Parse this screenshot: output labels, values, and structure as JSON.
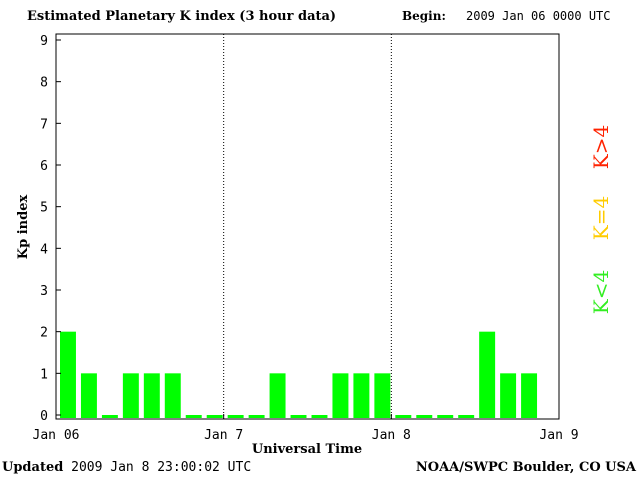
{
  "header": {
    "title": "Estimated Planetary K index (3 hour data)",
    "begin_label": "Begin:",
    "begin_value": "2009 Jan 06 0000 UTC"
  },
  "footer": {
    "updated_label": "Updated",
    "updated_value": "2009 Jan  8 23:00:02 UTC",
    "source": "NOAA/SWPC Boulder, CO USA"
  },
  "chart_data": {
    "type": "bar",
    "title": "Estimated Planetary K index (3 hour data)",
    "xlabel": "Universal Time",
    "ylabel": "Kp index",
    "ylim": [
      0,
      9
    ],
    "yticks": [
      "0",
      "1",
      "2",
      "3",
      "4",
      "5",
      "6",
      "7",
      "8",
      "9"
    ],
    "xticks": [
      "Jan 06",
      "Jan 7",
      "Jan 8",
      "Jan 9"
    ],
    "categories": [
      "Jan 06 00",
      "Jan 06 03",
      "Jan 06 06",
      "Jan 06 09",
      "Jan 06 12",
      "Jan 06 15",
      "Jan 06 18",
      "Jan 06 21",
      "Jan 07 00",
      "Jan 07 03",
      "Jan 07 06",
      "Jan 07 09",
      "Jan 07 12",
      "Jan 07 15",
      "Jan 07 18",
      "Jan 07 21",
      "Jan 08 00",
      "Jan 08 03",
      "Jan 08 06",
      "Jan 08 09",
      "Jan 08 12",
      "Jan 08 15",
      "Jan 08 18",
      "Jan 08 21"
    ],
    "values": [
      2,
      1,
      0,
      1,
      1,
      1,
      0,
      0,
      0,
      0,
      1,
      0,
      0,
      1,
      1,
      1,
      0,
      0,
      0,
      0,
      2,
      1,
      1,
      null
    ],
    "bar_color": "#00ff00",
    "legend": [
      {
        "label": "K<4",
        "color": "#33ee22"
      },
      {
        "label": "K=4",
        "color": "#ffcc00"
      },
      {
        "label": "K>4",
        "color": "#ff2200"
      }
    ],
    "legend_placement": "right",
    "grid": "vertical dotted lines at day boundaries"
  }
}
